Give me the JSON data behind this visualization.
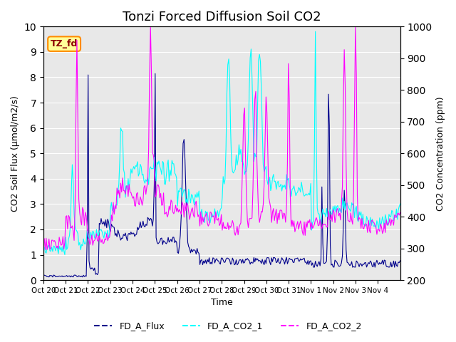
{
  "title": "Tonzi Forced Diffusion Soil CO2",
  "xlabel": "Time",
  "ylabel_left": "CO2 Soil Flux (μmol/m2/s)",
  "ylabel_right": "CO2 Concentration (ppm)",
  "ylim_left": [
    0.0,
    10.0
  ],
  "ylim_right": [
    200,
    1000
  ],
  "yticks_left": [
    0.0,
    1.0,
    2.0,
    3.0,
    4.0,
    5.0,
    6.0,
    7.0,
    8.0,
    9.0,
    10.0
  ],
  "yticks_right": [
    200,
    300,
    400,
    500,
    600,
    700,
    800,
    900,
    1000
  ],
  "xtick_labels": [
    "Oct 20",
    "Oct 21",
    "Oct 22",
    "Oct 23",
    "Oct 24",
    "Oct 25",
    "Oct 26",
    "Oct 27",
    "Oct 28",
    "Oct 29",
    "Oct 30",
    "Oct 31",
    "Nov 1",
    "Nov 2",
    "Nov 3",
    "Nov 4"
  ],
  "xtick_positions": [
    0,
    1,
    2,
    3,
    4,
    5,
    6,
    7,
    8,
    9,
    10,
    11,
    12,
    13,
    14,
    15
  ],
  "color_flux": "#00008B",
  "color_co2_1": "#00FFFF",
  "color_co2_2": "#FF00FF",
  "legend_labels": [
    "FD_A_Flux",
    "FD_A_CO2_1",
    "FD_A_CO2_2"
  ],
  "tag_label": "TZ_fd",
  "tag_facecolor": "#FFFF99",
  "tag_edgecolor": "#FF8C00",
  "tag_textcolor": "#8B0000",
  "bg_color": "#E8E8E8",
  "figsize": [
    6.4,
    4.8
  ],
  "dpi": 100,
  "title_fontsize": 13
}
